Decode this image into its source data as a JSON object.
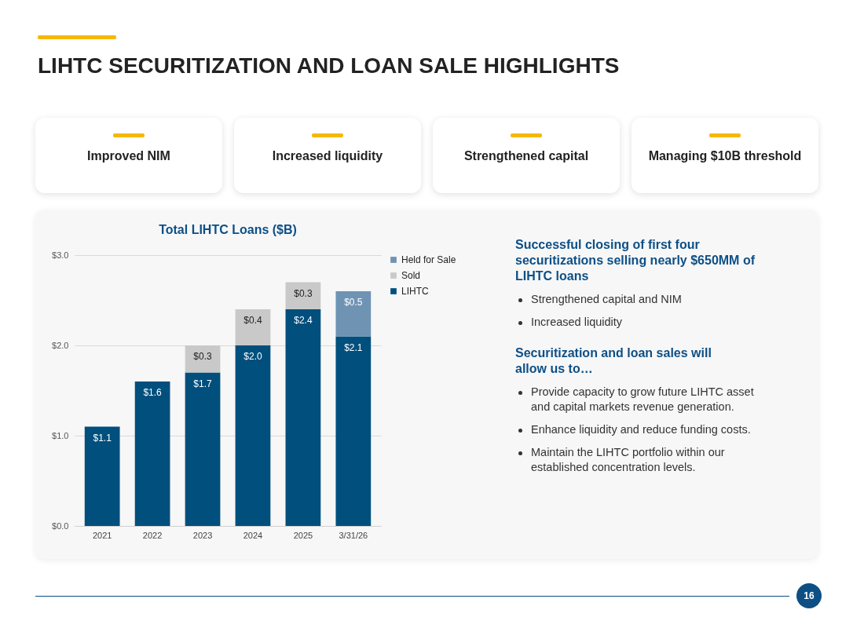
{
  "chart_data": {
    "type": "bar",
    "title": "Total LIHTC Loans ($B)",
    "categories": [
      "2021",
      "2022",
      "2023",
      "2024",
      "2025",
      "3/31/26"
    ],
    "stacked": true,
    "series": [
      {
        "name": "LIHTC",
        "color": "#014f7d",
        "values": [
          1.1,
          1.6,
          1.7,
          2.0,
          2.4,
          2.1
        ],
        "value_labels": [
          "$1.1",
          "$1.6",
          "$1.7",
          "$2.0",
          "$2.4",
          "$2.1"
        ]
      },
      {
        "name": "Sold",
        "color": "#c9c9c9",
        "values": [
          null,
          null,
          0.3,
          0.4,
          0.3,
          null
        ],
        "value_labels": [
          null,
          null,
          "$0.3",
          "$0.4",
          "$0.3",
          null
        ]
      },
      {
        "name": "Held for Sale",
        "color": "#6f93b3",
        "values": [
          null,
          null,
          null,
          null,
          null,
          0.5
        ],
        "value_labels": [
          null,
          null,
          null,
          null,
          null,
          "$0.5"
        ]
      }
    ],
    "ylim": [
      0,
      3
    ],
    "yticks": [
      {
        "value": 0,
        "label": "$0.0"
      },
      {
        "value": 1,
        "label": "$1.0"
      },
      {
        "value": 2,
        "label": "$2.0"
      },
      {
        "value": 3,
        "label": "$3.0"
      }
    ],
    "grid": "y",
    "legend": "right",
    "annotations": [
      "LIHTC SECURITIZATION AND LOAN SALE HIGHLIGHTS",
      "Improved NIM",
      "Increased liquidity",
      "Strengthened capital",
      "Managing $10B threshold",
      "Successful closing of first four securitizations selling nearly $650MM of LIHTC loans",
      "Strengthened capital and NIM",
      "Increased liquidity",
      "Securitization and loan sales will allow us to…",
      "Provide capacity to grow future LIHTC asset and capital markets revenue generation.",
      "Enhance liquidity and reduce funding costs.",
      "Maintain the LIHTC portfolio within our established concentration levels.",
      "16"
    ]
  }
}
